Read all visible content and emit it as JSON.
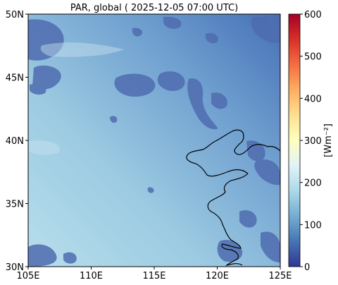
{
  "figure": {
    "title": "PAR, global ( 2025-12-05 07:00 UTC)"
  },
  "map": {
    "x_ticks": [
      {
        "lon": 105,
        "label": "105E"
      },
      {
        "lon": 110,
        "label": "110E"
      },
      {
        "lon": 115,
        "label": "115E"
      },
      {
        "lon": 120,
        "label": "120E"
      },
      {
        "lon": 125,
        "label": "125E"
      }
    ],
    "y_ticks": [
      {
        "lat": 50,
        "label": "50N"
      },
      {
        "lat": 45,
        "label": "45N"
      },
      {
        "lat": 40,
        "label": "40N"
      },
      {
        "lat": 35,
        "label": "35N"
      },
      {
        "lat": 30,
        "label": "30N"
      }
    ],
    "lon_range": [
      105,
      125
    ],
    "lat_range": [
      30,
      50
    ],
    "field_description": "smooth gradient with scattered cloud patches (lower values) mostly north of 42N and near the coast",
    "clear_sky_range_wm2": [
      120,
      230
    ],
    "cloud_patch_range_wm2": [
      40,
      100
    ]
  },
  "colorbar": {
    "label": "[Wm⁻²]",
    "colormap": "RdYlBu_r",
    "range": [
      0,
      600
    ],
    "ticks": [
      {
        "value": 0,
        "label": "0"
      },
      {
        "value": 100,
        "label": "100"
      },
      {
        "value": 200,
        "label": "200"
      },
      {
        "value": 300,
        "label": "300"
      },
      {
        "value": 400,
        "label": "400"
      },
      {
        "value": 500,
        "label": "500"
      },
      {
        "value": 600,
        "label": "600"
      }
    ]
  },
  "colors": {
    "coastline": "#000000",
    "clear_sky_light": "#b8deec",
    "clear_sky_dark": "#4b78bb",
    "cloud": "#4f6cb0"
  }
}
